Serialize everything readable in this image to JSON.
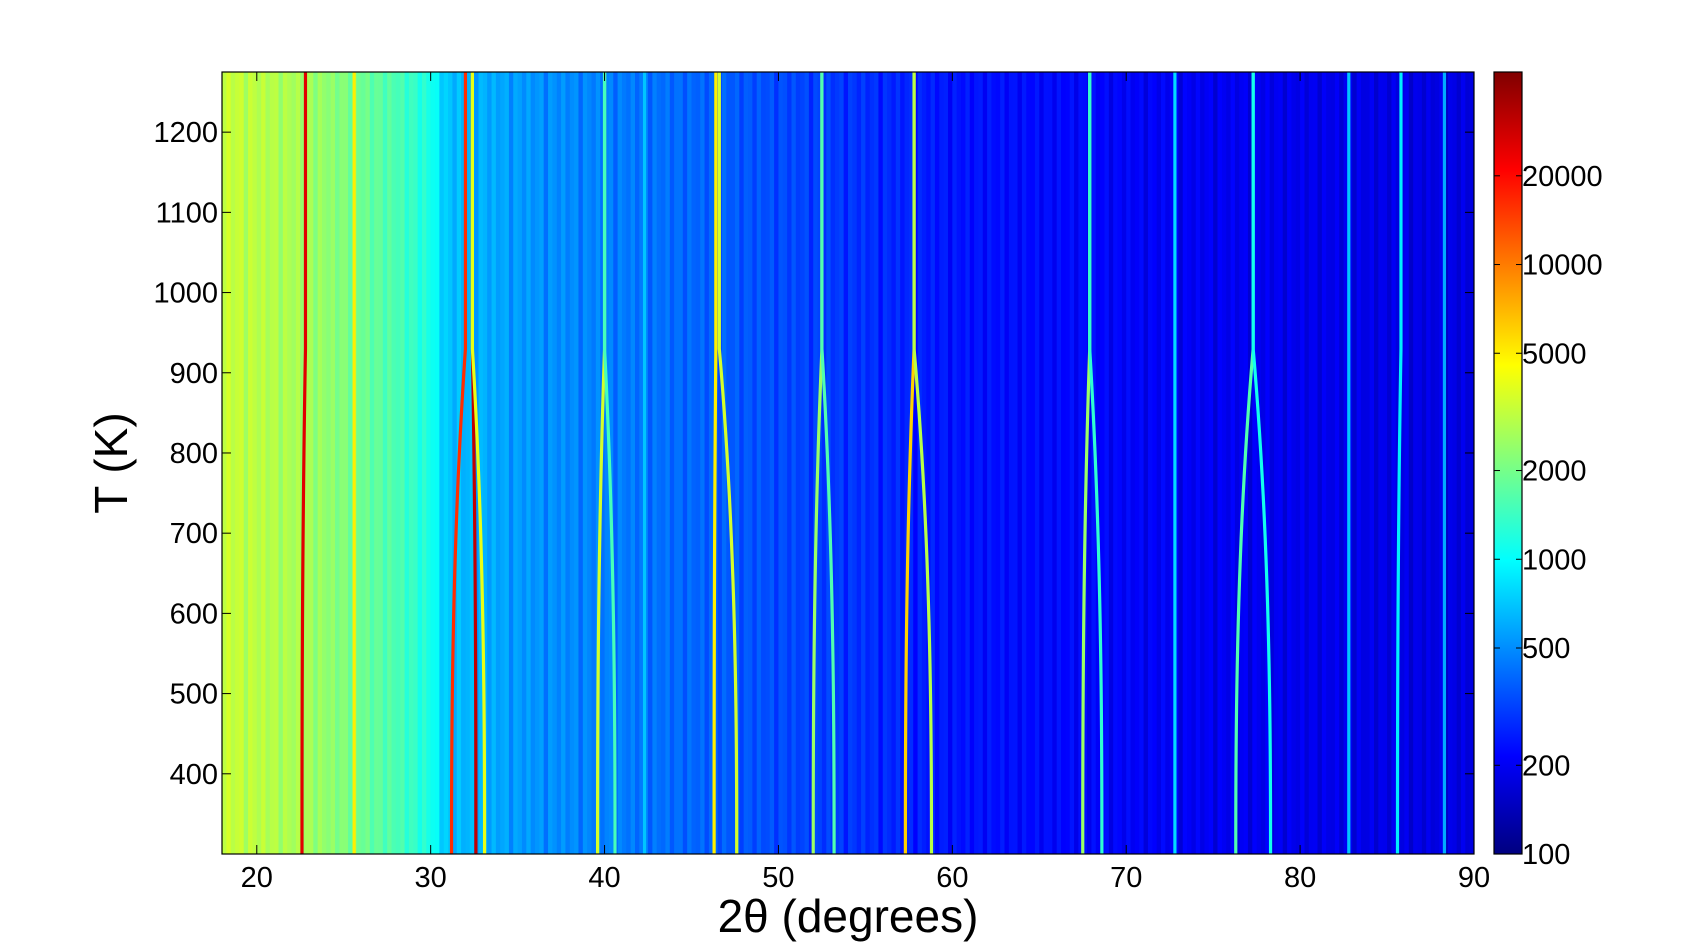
{
  "chart_data": {
    "type": "heatmap",
    "title": "",
    "xlabel": "2θ (degrees)",
    "ylabel": "T (K)",
    "xlim": [
      18,
      90
    ],
    "ylim": [
      300,
      1275
    ],
    "x_ticks": [
      20,
      30,
      40,
      50,
      60,
      70,
      80,
      90
    ],
    "y_ticks": [
      400,
      500,
      600,
      700,
      800,
      900,
      1000,
      1100,
      1200
    ],
    "colorbar": {
      "scale": "log",
      "colormap": "jet",
      "range": [
        100,
        45000
      ],
      "ticks": [
        100,
        200,
        500,
        1000,
        2000,
        5000,
        10000,
        20000
      ]
    },
    "background": [
      {
        "x": 18,
        "value": 3200
      },
      {
        "x": 23,
        "value": 2500
      },
      {
        "x": 28,
        "value": 1500
      },
      {
        "x": 30,
        "value": 1100
      },
      {
        "x": 31,
        "value": 650
      },
      {
        "x": 36,
        "value": 500
      },
      {
        "x": 45,
        "value": 380
      },
      {
        "x": 60,
        "value": 230
      },
      {
        "x": 75,
        "value": 190
      },
      {
        "x": 90,
        "value": 170
      }
    ],
    "transition_temperature": 930,
    "peaks": [
      {
        "x_low": 22.6,
        "x_high": 22.8,
        "intensity": 25000
      },
      {
        "x_low": 25.6,
        "x_high": 25.6,
        "intensity": 5000
      },
      {
        "x_low": 31.2,
        "x_high": 32.0,
        "intensity": 16000
      },
      {
        "x_low": 32.6,
        "x_high": 32.4,
        "intensity": 30000
      },
      {
        "x_low": 33.1,
        "x_high": 32.4,
        "intensity": 4000
      },
      {
        "x_low": 39.6,
        "x_high": 40.0,
        "intensity": 3500
      },
      {
        "x_low": 40.6,
        "x_high": 40.0,
        "intensity": 1500
      },
      {
        "x_low": 42.3,
        "x_high": 42.3,
        "intensity": 700
      },
      {
        "x_low": 46.3,
        "x_high": 46.4,
        "intensity": 5000
      },
      {
        "x_low": 47.6,
        "x_high": 46.6,
        "intensity": 3500
      },
      {
        "x_low": 52.0,
        "x_high": 52.5,
        "intensity": 2500
      },
      {
        "x_low": 53.2,
        "x_high": 52.5,
        "intensity": 1600
      },
      {
        "x_low": 57.3,
        "x_high": 57.8,
        "intensity": 6000
      },
      {
        "x_low": 58.8,
        "x_high": 57.8,
        "intensity": 3000
      },
      {
        "x_low": 67.5,
        "x_high": 67.9,
        "intensity": 2500
      },
      {
        "x_low": 68.6,
        "x_high": 67.9,
        "intensity": 1300
      },
      {
        "x_low": 72.8,
        "x_high": 72.8,
        "intensity": 800
      },
      {
        "x_low": 76.3,
        "x_high": 77.3,
        "intensity": 1600
      },
      {
        "x_low": 78.3,
        "x_high": 77.3,
        "intensity": 1100
      },
      {
        "x_low": 82.8,
        "x_high": 82.8,
        "intensity": 700
      },
      {
        "x_low": 85.6,
        "x_high": 85.8,
        "intensity": 900
      },
      {
        "x_low": 88.3,
        "x_high": 88.3,
        "intensity": 600
      }
    ]
  }
}
